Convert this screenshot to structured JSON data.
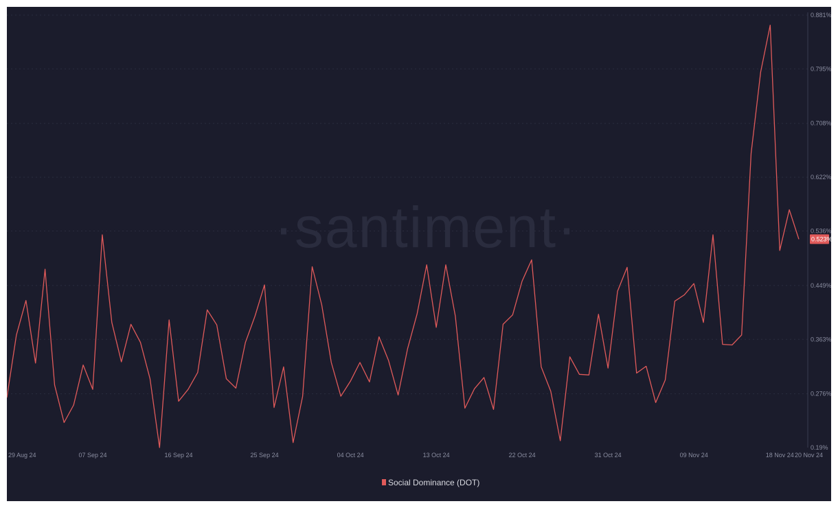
{
  "watermark": "·santiment·",
  "chart_data": {
    "type": "line",
    "title": "",
    "xlabel": "",
    "ylabel": "",
    "x_start": "2024-08-27",
    "x_end": "2024-11-20",
    "x_ticks": [
      {
        "label": "29 Aug 24",
        "index": 0.0
      },
      {
        "label": "07 Sep 24",
        "index": 9
      },
      {
        "label": "16 Sep 24",
        "index": 18
      },
      {
        "label": "25 Sep 24",
        "index": 27
      },
      {
        "label": "04 Oct 24",
        "index": 36
      },
      {
        "label": "13 Oct 24",
        "index": 45
      },
      {
        "label": "22 Oct 24",
        "index": 54
      },
      {
        "label": "31 Oct 24",
        "index": 63
      },
      {
        "label": "09 Nov 24",
        "index": 72
      },
      {
        "label": "18 Nov 24",
        "index": 81
      },
      {
        "label": "20 Nov 24",
        "index": 83
      }
    ],
    "y_ticks": [
      "0.19%",
      "0.276%",
      "0.363%",
      "0.449%",
      "0.536%",
      "0.622%",
      "0.708%",
      "0.795%",
      "0.881%"
    ],
    "y_tick_values": [
      0.19,
      0.276,
      0.363,
      0.449,
      0.536,
      0.622,
      0.708,
      0.795,
      0.881
    ],
    "ylim": [
      0.19,
      0.881
    ],
    "grid": true,
    "legend": {
      "position": "bottom-center"
    },
    "series": [
      {
        "name": "Social Dominance (DOT)",
        "color": "#e05a5a",
        "current_label": "0.523%",
        "values": [
          0.27,
          0.37,
          0.425,
          0.325,
          0.475,
          0.29,
          0.23,
          0.258,
          0.322,
          0.283,
          0.53,
          0.39,
          0.327,
          0.387,
          0.358,
          0.3,
          0.19,
          0.394,
          0.264,
          0.283,
          0.31,
          0.41,
          0.386,
          0.3,
          0.285,
          0.358,
          0.4,
          0.45,
          0.254,
          0.319,
          0.198,
          0.272,
          0.479,
          0.418,
          0.326,
          0.272,
          0.296,
          0.326,
          0.295,
          0.367,
          0.329,
          0.274,
          0.348,
          0.404,
          0.482,
          0.382,
          0.482,
          0.4,
          0.253,
          0.284,
          0.302,
          0.251,
          0.387,
          0.402,
          0.456,
          0.49,
          0.319,
          0.28,
          0.201,
          0.335,
          0.307,
          0.306,
          0.403,
          0.317,
          0.44,
          0.478,
          0.309,
          0.32,
          0.262,
          0.298,
          0.424,
          0.434,
          0.452,
          0.39,
          0.53,
          0.355,
          0.354,
          0.37,
          0.66,
          0.79,
          0.865,
          0.505,
          0.57,
          0.523
        ]
      }
    ]
  }
}
